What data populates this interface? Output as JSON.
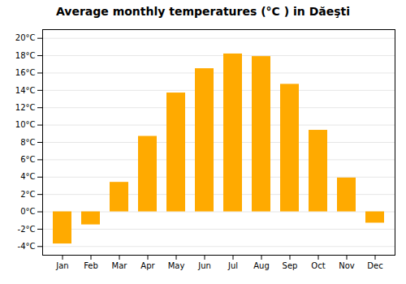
{
  "chart_data": {
    "type": "bar",
    "title": "Average monthly temperatures (°C ) in Dăeşti",
    "categories": [
      "Jan",
      "Feb",
      "Mar",
      "Apr",
      "May",
      "Jun",
      "Jul",
      "Aug",
      "Sep",
      "Oct",
      "Nov",
      "Dec"
    ],
    "values": [
      -3.7,
      -1.5,
      3.4,
      8.7,
      13.7,
      16.5,
      18.2,
      17.9,
      14.7,
      9.4,
      3.9,
      -1.3
    ],
    "color": "#FFAA00",
    "ylim": [
      -5,
      21
    ],
    "yticks": [
      {
        "value": -4,
        "label": "-4°C"
      },
      {
        "value": -2,
        "label": "-2°C"
      },
      {
        "value": 0,
        "label": "0°C"
      },
      {
        "value": 2,
        "label": "2°C"
      },
      {
        "value": 4,
        "label": "4°C"
      },
      {
        "value": 6,
        "label": "6°C"
      },
      {
        "value": 8,
        "label": "8°C"
      },
      {
        "value": 10,
        "label": "10°C"
      },
      {
        "value": 12,
        "label": "12°C"
      },
      {
        "value": 14,
        "label": "14°C"
      },
      {
        "value": 16,
        "label": "16°C"
      },
      {
        "value": 18,
        "label": "18°C"
      },
      {
        "value": 20,
        "label": "20°C"
      }
    ],
    "grid": true
  }
}
